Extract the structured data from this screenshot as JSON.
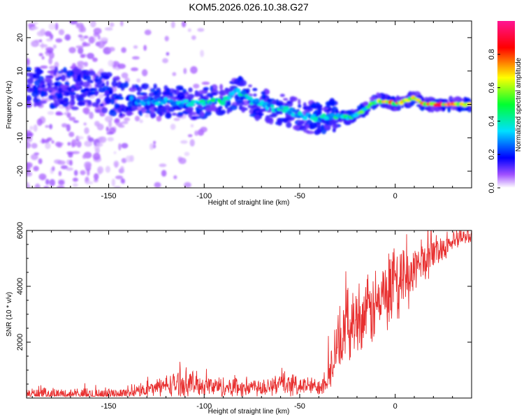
{
  "title": "KOM5.2026.026.10.38.G27",
  "chart_data": [
    {
      "type": "heatmap",
      "title": "KOM5.2026.026.10.38.G27",
      "xlabel": "Height of straight line (km)",
      "ylabel": "Frequency (Hz)",
      "xlim": [
        -193,
        40
      ],
      "ylim": [
        -25,
        25
      ],
      "xticks": [
        -150,
        -100,
        -50,
        0
      ],
      "yticks": [
        -20,
        -10,
        0,
        10,
        20
      ],
      "colorbar": {
        "label": "Normalized spectral amplitude",
        "range": [
          0,
          1
        ],
        "ticks": [
          0.0,
          0.2,
          0.4,
          0.6,
          0.8
        ],
        "tick_labels": [
          "0.0",
          "0.2",
          "0.4",
          "0.6",
          "0.8"
        ],
        "colormap": [
          "#ffffff",
          "#7f00ff",
          "#0000ff",
          "#00ffff",
          "#00ff00",
          "#ffff00",
          "#ff0000",
          "#ff1493"
        ]
      },
      "signal_track": {
        "x": [
          -190,
          -170,
          -150,
          -135,
          -120,
          -105,
          -90,
          -83,
          -75,
          -65,
          -55,
          -45,
          -38,
          -30,
          -25,
          -20,
          -15,
          -10,
          -5,
          0,
          5,
          10,
          15,
          25,
          40
        ],
        "freq": [
          5,
          5,
          3,
          1,
          1,
          0,
          1,
          4,
          1,
          -1,
          -2,
          -4,
          -4,
          -3,
          -4,
          -3,
          -1,
          1,
          1,
          0,
          1,
          2,
          0,
          0,
          0
        ],
        "amplitude": [
          0.15,
          0.18,
          0.2,
          0.3,
          0.35,
          0.4,
          0.45,
          0.5,
          0.4,
          0.35,
          0.4,
          0.35,
          0.4,
          0.4,
          0.45,
          0.5,
          0.55,
          0.6,
          0.7,
          0.75,
          0.8,
          0.85,
          0.85,
          0.9,
          0.8
        ]
      },
      "noise_floor_end_x": -140
    },
    {
      "type": "line",
      "title": "",
      "xlabel": "Height of straight line (km)",
      "ylabel": "SNR (10 * v/v)",
      "xlim": [
        -193,
        40
      ],
      "ylim": [
        0,
        6000
      ],
      "xticks": [
        -150,
        -100,
        -50,
        0
      ],
      "yticks": [
        2000,
        4000,
        6000
      ],
      "color": "#e83030",
      "envelope": {
        "x": [
          -193,
          -170,
          -150,
          -140,
          -130,
          -120,
          -110,
          -100,
          -90,
          -80,
          -70,
          -60,
          -50,
          -40,
          -35,
          -30,
          -25,
          -20,
          -15,
          -10,
          -5,
          0,
          5,
          10,
          15,
          20,
          30,
          40
        ],
        "base": [
          150,
          130,
          150,
          180,
          300,
          450,
          550,
          450,
          400,
          380,
          420,
          500,
          450,
          400,
          800,
          1800,
          2600,
          2900,
          3000,
          3300,
          3600,
          3800,
          4200,
          4600,
          4900,
          5200,
          5600,
          5850
        ],
        "spread": [
          250,
          250,
          250,
          200,
          300,
          450,
          650,
          450,
          450,
          420,
          450,
          500,
          450,
          350,
          800,
          1300,
          1500,
          1500,
          1500,
          1700,
          1700,
          1500,
          1300,
          1200,
          1000,
          700,
          450,
          300
        ]
      }
    }
  ]
}
